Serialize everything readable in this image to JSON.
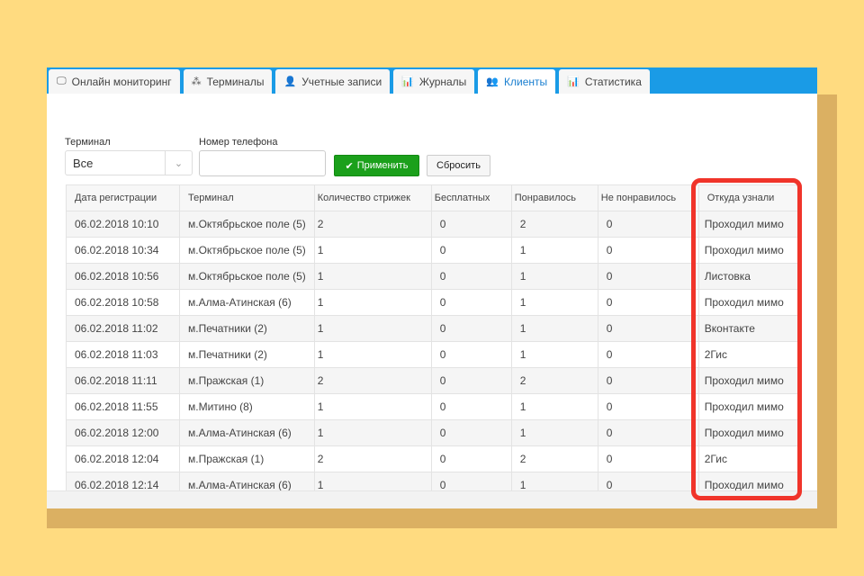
{
  "tabs": [
    {
      "label": "Онлайн мониторинг",
      "icon": "monitor-icon",
      "glyph": "🖵"
    },
    {
      "label": "Терминалы",
      "icon": "sitemap-icon",
      "glyph": "⁂"
    },
    {
      "label": "Учетные записи",
      "icon": "user-icon",
      "glyph": "👤"
    },
    {
      "label": "Журналы",
      "icon": "bar-chart-icon",
      "glyph": "📊"
    },
    {
      "label": "Клиенты",
      "icon": "users-icon",
      "glyph": "👥",
      "active": true
    },
    {
      "label": "Статистика",
      "icon": "bar-chart-icon",
      "glyph": "📊"
    }
  ],
  "filters": {
    "terminal_label": "Терминал",
    "terminal_value": "Все",
    "phone_label": "Номер телефона",
    "phone_value": "",
    "apply_label": "Применить",
    "reset_label": "Сбросить"
  },
  "colors": {
    "accent": "#1A9BE6",
    "apply": "#1BA01B",
    "highlight": "#F0342A"
  },
  "table": {
    "headers": [
      "Дата регистрации",
      "Терминал",
      "Количество стрижек",
      "Бесплатных",
      "Понравилось",
      "Не понравилось",
      "Откуда узнали"
    ],
    "rows": [
      [
        "06.02.2018 10:10",
        "м.Октябрьское поле (5)",
        "2",
        "0",
        "2",
        "0",
        "Проходил мимо"
      ],
      [
        "06.02.2018 10:34",
        "м.Октябрьское поле (5)",
        "1",
        "0",
        "1",
        "0",
        "Проходил мимо"
      ],
      [
        "06.02.2018 10:56",
        "м.Октябрьское поле (5)",
        "1",
        "0",
        "1",
        "0",
        "Листовка"
      ],
      [
        "06.02.2018 10:58",
        "м.Алма-Атинская (6)",
        "1",
        "0",
        "1",
        "0",
        "Проходил мимо"
      ],
      [
        "06.02.2018 11:02",
        "м.Печатники (2)",
        "1",
        "0",
        "1",
        "0",
        "Вконтакте"
      ],
      [
        "06.02.2018 11:03",
        "м.Печатники (2)",
        "1",
        "0",
        "1",
        "0",
        "2Гис"
      ],
      [
        "06.02.2018 11:11",
        "м.Пражская (1)",
        "2",
        "0",
        "2",
        "0",
        "Проходил мимо"
      ],
      [
        "06.02.2018 11:55",
        "м.Митино (8)",
        "1",
        "0",
        "1",
        "0",
        "Проходил мимо"
      ],
      [
        "06.02.2018 12:00",
        "м.Алма-Атинская (6)",
        "1",
        "0",
        "1",
        "0",
        "Проходил мимо"
      ],
      [
        "06.02.2018 12:04",
        "м.Пражская (1)",
        "2",
        "0",
        "2",
        "0",
        "2Гис"
      ],
      [
        "06.02.2018 12:14",
        "м.Алма-Атинская (6)",
        "1",
        "0",
        "1",
        "0",
        "Проходил мимо"
      ]
    ]
  }
}
